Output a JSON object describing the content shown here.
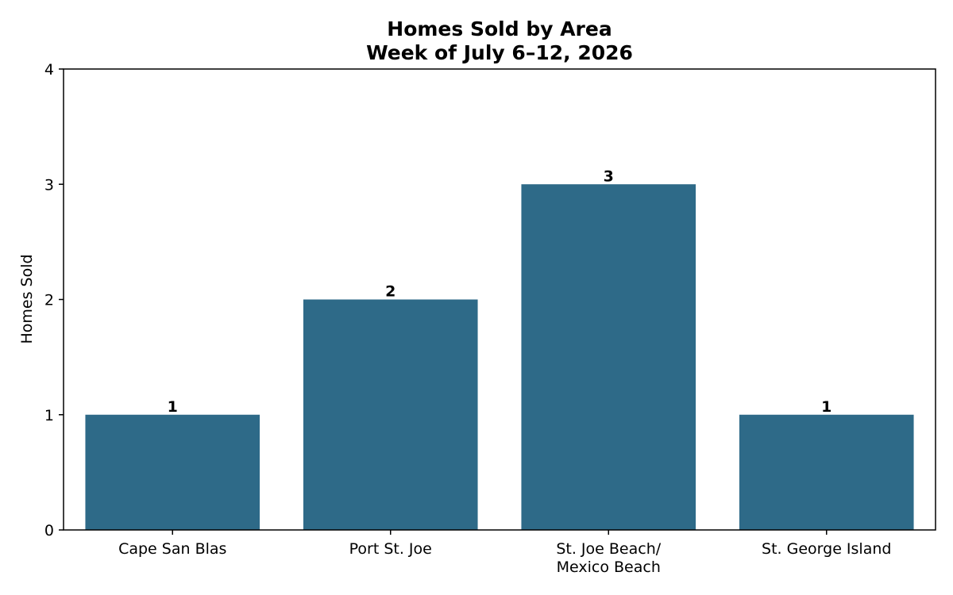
{
  "chart_data": {
    "type": "bar",
    "title": "Homes Sold by Area",
    "subtitle": "Week of July 6–12, 2026",
    "xlabel": "",
    "ylabel": "Homes Sold",
    "categories": [
      [
        "Cape San Blas"
      ],
      [
        "Port St. Joe"
      ],
      [
        "St. Joe Beach/",
        "Mexico Beach"
      ],
      [
        "St. George Island"
      ]
    ],
    "values": [
      1,
      2,
      3,
      1
    ],
    "ylim": [
      0,
      4
    ],
    "yticks": [
      "0",
      "1",
      "2",
      "3",
      "4"
    ],
    "data_labels": [
      "1",
      "2",
      "3",
      "1"
    ],
    "bar_color": "#2e6a88",
    "grid": false,
    "legend": "none"
  }
}
